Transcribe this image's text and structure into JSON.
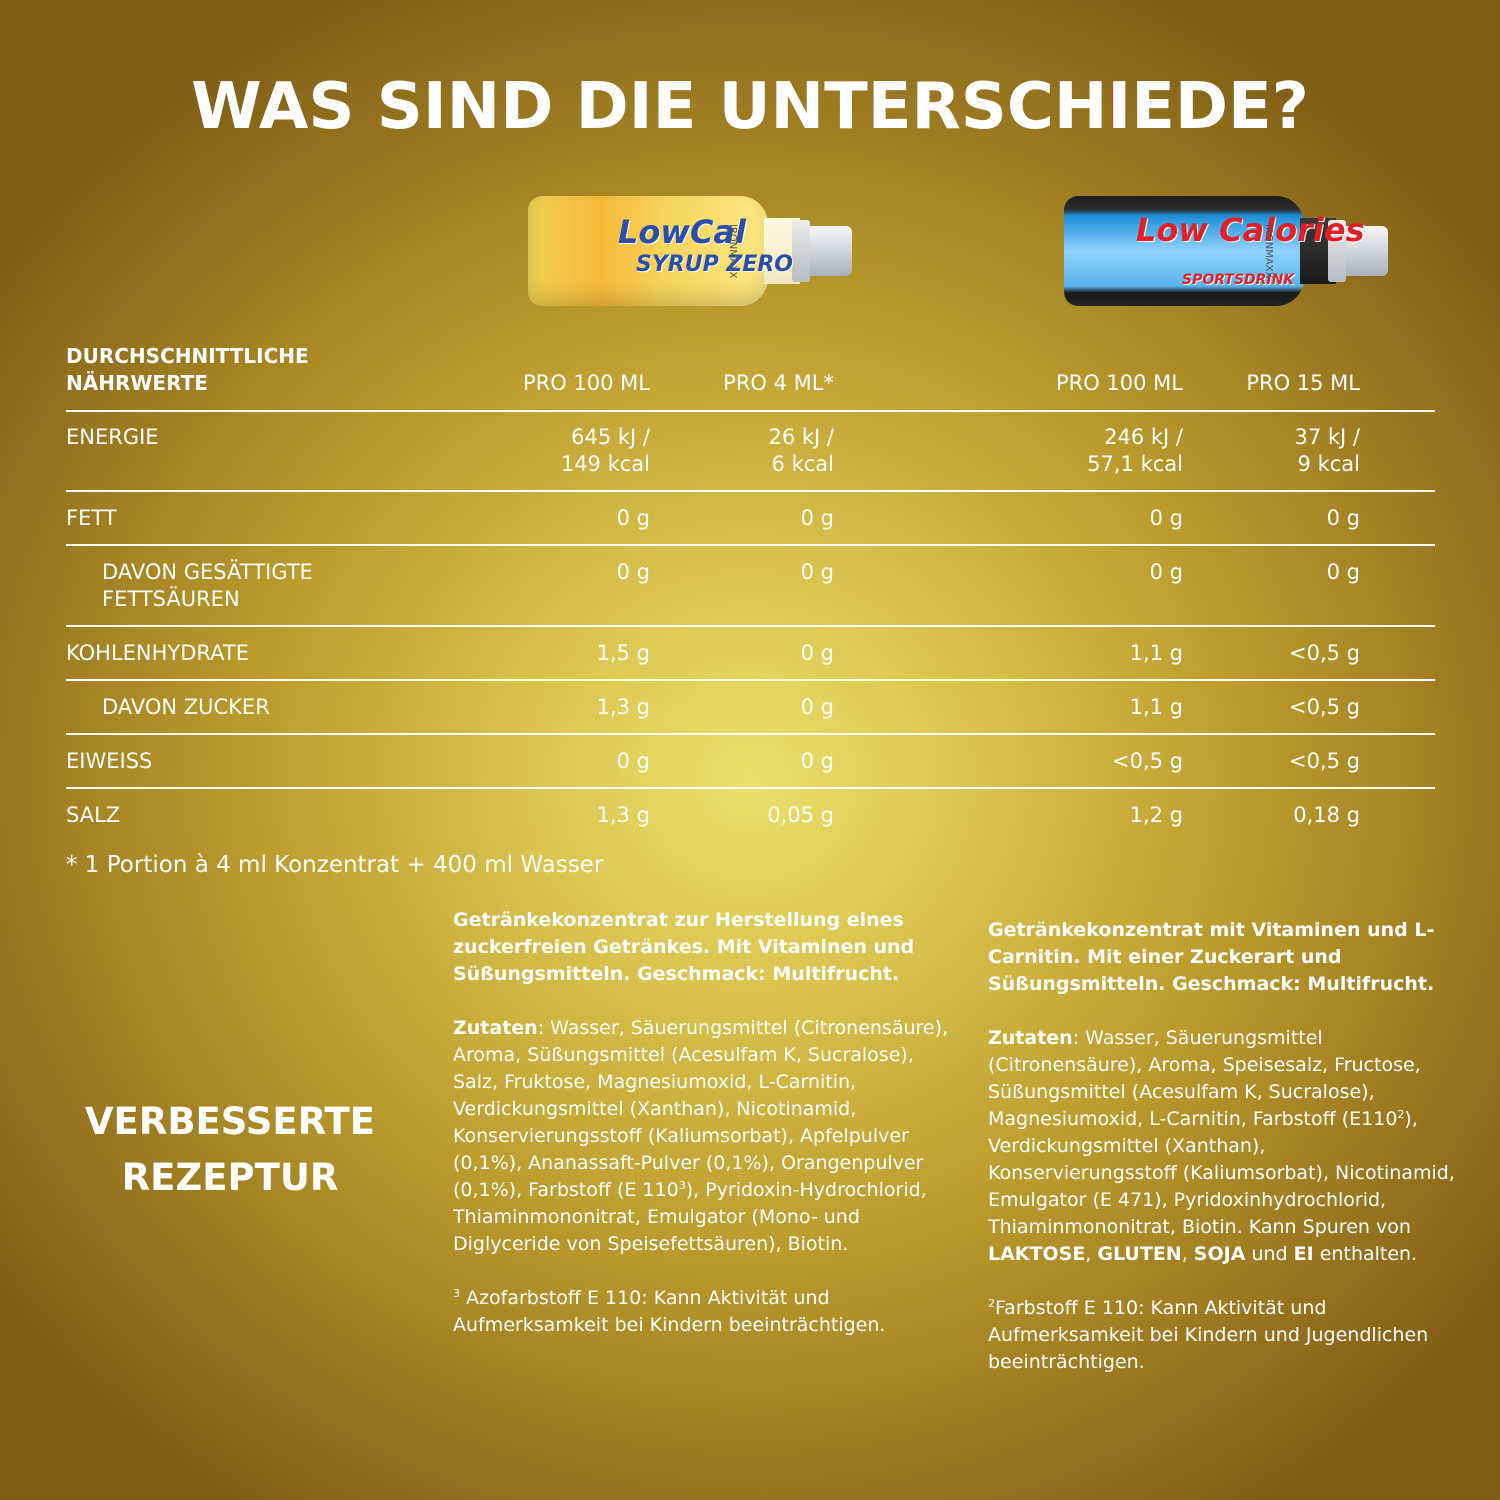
{
  "title": "WAS SIND DIE UNTERSCHIEDE?",
  "products": [
    {
      "name_line1": "LowCal",
      "name_line2": "SYRUP ZERO",
      "brand": "IRONMAXX",
      "icon": "lowcal-syrup-zero-bottle-icon"
    },
    {
      "name_line1": "Low Calories",
      "name_line2": "SPORTSDRINK",
      "brand": "IRONMAXX",
      "icon": "low-calories-sportsdrink-bottle-icon"
    }
  ],
  "table": {
    "header_label": "DURCHSCHNITTLICHE\nNÄHRWERTE",
    "columns": [
      "PRO 100 ML",
      "PRO 4 ML*",
      "PRO 100 ML",
      "PRO 15 ML"
    ],
    "rows": [
      {
        "label": "ENERGIE",
        "values": [
          "645 kJ /\n149 kcal",
          "26 kJ /\n6 kcal",
          "246 kJ /\n57,1 kcal",
          "37 kJ /\n9 kcal"
        ]
      },
      {
        "label": "FETT",
        "values": [
          "0 g",
          "0 g",
          "0 g",
          "0 g"
        ]
      },
      {
        "label": "DAVON GESÄTTIGTE\nFETTSÄUREN",
        "values": [
          "0 g",
          "0 g",
          "0 g",
          "0 g"
        ]
      },
      {
        "label": "KOHLENHYDRATE",
        "values": [
          "1,5 g",
          "0 g",
          "1,1 g",
          "<0,5 g"
        ]
      },
      {
        "label": "DAVON ZUCKER",
        "values": [
          "1,3 g",
          "0 g",
          "1,1 g",
          "<0,5 g"
        ]
      },
      {
        "label": "EIWEISS",
        "values": [
          "0 g",
          "0 g",
          "<0,5 g",
          "<0,5 g"
        ]
      },
      {
        "label": "SALZ",
        "values": [
          "1,3 g",
          "0,05 g",
          "1,2 g",
          "0,18 g"
        ]
      }
    ]
  },
  "footnote": "* 1 Portion à 4 ml Konzentrat + 400 ml Wasser",
  "side_label_line1": "VERBESSERTE",
  "side_label_line2": "REZEPTUR",
  "desc1": {
    "intro": "Getränkekonzentrat zur Herstellung eines zuckerfreien Getränkes. Mit Vitaminen und Süßungsmitteln. Geschmack: Multifrucht.",
    "zutaten_label": "Zutaten",
    "zutaten_a": ": Wasser, Säuerungsmittel (Citronensäure), Aroma, Süßungsmittel (Acesulfam K, Sucralose), Salz, Fruktose, Magnesiumoxid, L-Carnitin, Verdickungsmittel (Xanthan), Nicotinamid, Konservierungsstoff (Kaliumsorbat), Apfelpulver (0,1%), Ananassaft-Pulver (0,1%), Orangenpulver (0,1%), Farbstoff (E 110",
    "zutaten_sup": "3",
    "zutaten_b": "), Pyridoxin-Hydrochlorid, Thiaminmononitrat, Emulgator (Mono- und Diglyceride von Speisefettsäuren), Biotin.",
    "note_sup": "3",
    "note": " Azofarbstoff E 110: Kann Aktivität und Aufmerksamkeit bei Kindern beeinträchtigen."
  },
  "desc2": {
    "intro": "Getränkekonzentrat mit Vitaminen und L-Carnitin. Mit einer Zuckerart und Süßungsmitteln. Geschmack: Multifrucht.",
    "zutaten_label": "Zutaten",
    "zutaten_a": ": Wasser, Säuerungsmittel (Citronensäure), Aroma, Speisesalz, Fructose, Süßungsmittel (Acesulfam K, Sucralose), Magnesiumoxid, L-Carnitin, Farbstoff (E110",
    "zutaten_sup": "2",
    "zutaten_b": "), Verdickungsmittel (Xanthan), Konservierungsstoff (Kaliumsorbat), Nicotinamid, Emulgator (E 471), Pyridoxinhydrochlorid, Thiaminmononitrat, Biotin. Kann Spuren von ",
    "allergen1": "LAKTOSE",
    "sep1": ", ",
    "allergen2": "GLUTEN",
    "sep2": ", ",
    "allergen3": "SOJA",
    "sep3": " und ",
    "allergen4": "EI",
    "zutaten_end": " enthalten.",
    "note_sup": "2",
    "note": "Farbstoff E 110: Kann Aktivität und Aufmerksamkeit bei Kindern und Jugendlichen beeinträchtigen."
  }
}
